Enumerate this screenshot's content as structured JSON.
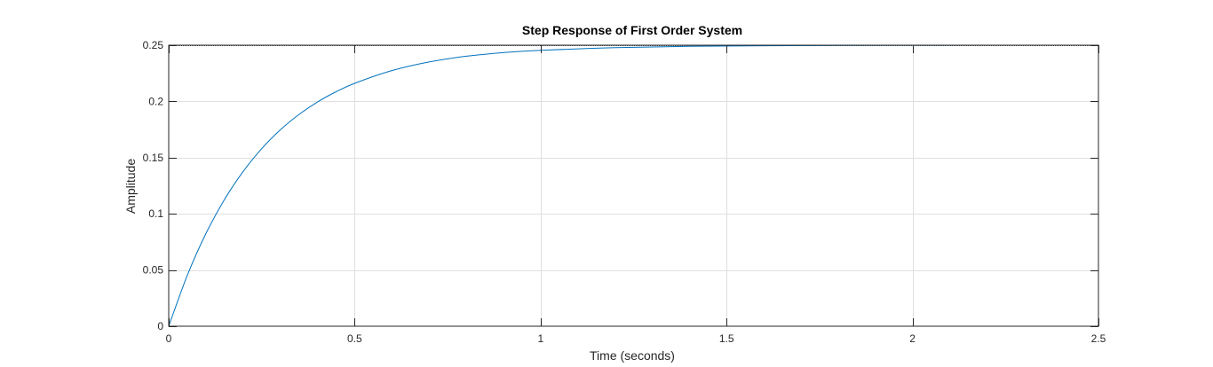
{
  "chart_data": {
    "type": "line",
    "title": "Step Response of First Order System",
    "xlabel": "Time (seconds)",
    "ylabel": "Amplitude",
    "xlim": [
      0,
      2.5
    ],
    "ylim": [
      0,
      0.25
    ],
    "xticks": [
      0,
      0.5,
      1,
      1.5,
      2,
      2.5
    ],
    "xtick_labels": [
      "0",
      "0.5",
      "1",
      "1.5",
      "2",
      "2.5"
    ],
    "yticks": [
      0,
      0.05,
      0.1,
      0.15,
      0.2,
      0.25
    ],
    "ytick_labels": [
      "0",
      "0.05",
      "0.1",
      "0.15",
      "0.2",
      "0.25"
    ],
    "grid": true,
    "final_value_reference": 0.25,
    "series": [
      {
        "color": "#0072bd",
        "x": [
          0,
          0.05,
          0.1,
          0.15,
          0.2,
          0.25,
          0.3,
          0.35,
          0.4,
          0.45,
          0.5,
          0.6,
          0.7,
          0.8,
          0.9,
          1.0,
          1.2,
          1.4,
          1.6,
          1.8,
          2.0,
          2.2,
          2.5
        ],
        "y": [
          0,
          0.0453,
          0.0824,
          0.1128,
          0.1376,
          0.158,
          0.1747,
          0.1883,
          0.1995,
          0.2086,
          0.2161,
          0.2274,
          0.2351,
          0.2402,
          0.2434,
          0.2455,
          0.2478,
          0.249,
          0.2495,
          0.2498,
          0.2499,
          0.25,
          0.25
        ]
      }
    ]
  },
  "colors": {
    "axes_background": "#ffffff",
    "axis_line": "#262626",
    "grid": "#dfdfdf",
    "reference_line": "#4d4d4d",
    "series_line": "#0072bd"
  }
}
